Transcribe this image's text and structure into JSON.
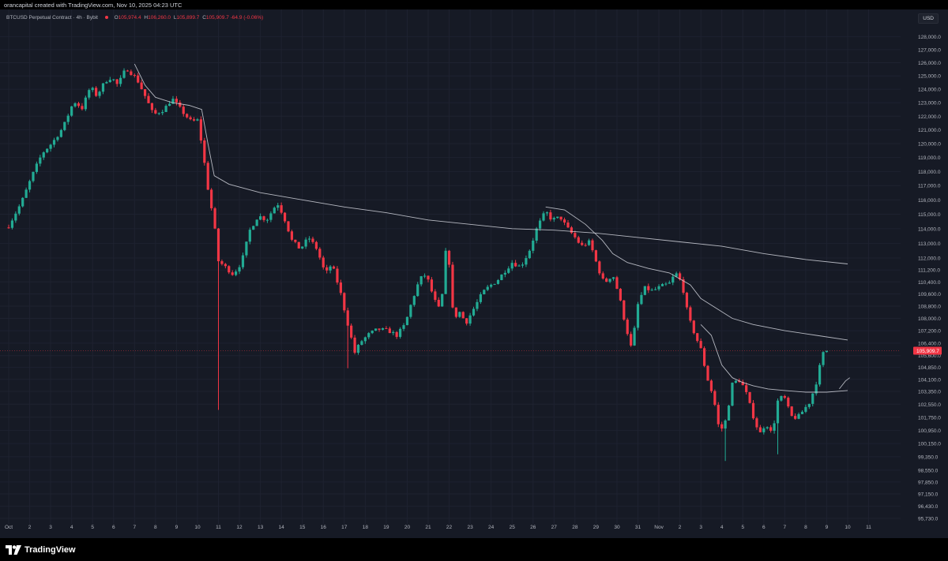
{
  "header": {
    "credit": "orancapital created with TradingView.com, Nov 10, 2025 04:23 UTC"
  },
  "legend": {
    "symbol": "BTCUSD Perpetual Contract · 4h · Bybit",
    "open_label": "O",
    "open": "105,974.4",
    "high_label": "H",
    "high": "106,260.0",
    "low_label": "L",
    "low": "105,899.7",
    "close_label": "C",
    "close": "105,909.7",
    "change": "-64.9 (-0.06%)"
  },
  "currency_label": "USD",
  "price_tag": "105,909.7",
  "footer": {
    "brand": "TradingView",
    "logo_icon": "tradingview-logo-icon"
  },
  "colors": {
    "up": "#22ab94",
    "down": "#f23645",
    "ma": "#d1d4dc",
    "background": "#161a25"
  },
  "chart_data": {
    "type": "candlestick",
    "symbol": "BTCUSD",
    "timeframe": "4h",
    "y_axis": {
      "scale": "log",
      "tick_labels": [
        "128,000.0",
        "127,000.0",
        "126,000.0",
        "125,000.0",
        "124,000.0",
        "123,000.0",
        "122,000.0",
        "121,000.0",
        "120,000.0",
        "119,000.0",
        "118,000.0",
        "117,000.0",
        "116,000.0",
        "115,000.0",
        "114,000.0",
        "113,000.0",
        "112,000.0",
        "111,200.0",
        "110,400.0",
        "109,600.0",
        "108,800.0",
        "108,000.0",
        "107,200.0",
        "106,400.0",
        "105,600.0",
        "104,850.0",
        "104,100.0",
        "103,350.0",
        "102,550.0",
        "101,750.0",
        "100,950.0",
        "100,150.0",
        "99,350.0",
        "98,550.0",
        "97,850.0",
        "97,150.0",
        "96,430.0",
        "95,730.0"
      ],
      "tick_values": [
        128000,
        127000,
        126000,
        125000,
        124000,
        123000,
        122000,
        121000,
        120000,
        119000,
        118000,
        117000,
        116000,
        115000,
        114000,
        113000,
        112000,
        111200,
        110400,
        109600,
        108800,
        108000,
        107200,
        106400,
        105600,
        104850,
        104100,
        103350,
        102550,
        101750,
        100950,
        100150,
        99350,
        98550,
        97850,
        97150,
        96430,
        95730
      ],
      "range": [
        95500,
        129000
      ]
    },
    "x_axis": {
      "tick_labels": [
        "Oct",
        "2",
        "3",
        "4",
        "5",
        "6",
        "7",
        "8",
        "9",
        "10",
        "11",
        "12",
        "13",
        "14",
        "15",
        "16",
        "17",
        "18",
        "19",
        "20",
        "21",
        "22",
        "23",
        "24",
        "25",
        "26",
        "27",
        "28",
        "29",
        "30",
        "31",
        "Nov",
        "2",
        "3",
        "4",
        "5",
        "6",
        "7",
        "8",
        "9",
        "10",
        "11"
      ],
      "range_days": [
        1,
        42
      ]
    },
    "last_price": 105909.7,
    "path": [
      [
        1.0,
        114200
      ],
      [
        1.6,
        115800
      ],
      [
        2.2,
        118000
      ],
      [
        2.6,
        119300
      ],
      [
        3.1,
        120100
      ],
      [
        3.6,
        121200
      ],
      [
        4.1,
        123100
      ],
      [
        4.5,
        122600
      ],
      [
        4.9,
        124200
      ],
      [
        5.2,
        123500
      ],
      [
        5.6,
        124600
      ],
      [
        5.9,
        124900
      ],
      [
        6.2,
        124300
      ],
      [
        6.6,
        125600
      ],
      [
        7.1,
        124800
      ],
      [
        7.5,
        123500
      ],
      [
        7.9,
        122100
      ],
      [
        8.4,
        122500
      ],
      [
        8.8,
        123300
      ],
      [
        9.3,
        122300
      ],
      [
        9.7,
        121600
      ],
      [
        10.0,
        121700
      ],
      [
        10.2,
        120000
      ],
      [
        10.5,
        116800
      ],
      [
        10.8,
        114300
      ],
      [
        11.0,
        111800
      ],
      [
        11.4,
        111300
      ],
      [
        11.7,
        110900
      ],
      [
        12.1,
        111700
      ],
      [
        12.5,
        113900
      ],
      [
        12.9,
        114900
      ],
      [
        13.3,
        114600
      ],
      [
        13.8,
        115800
      ],
      [
        14.1,
        114900
      ],
      [
        14.5,
        113200
      ],
      [
        14.9,
        112600
      ],
      [
        15.3,
        113400
      ],
      [
        15.7,
        112600
      ],
      [
        16.1,
        110900
      ],
      [
        16.4,
        111600
      ],
      [
        16.8,
        109800
      ],
      [
        17.1,
        108000
      ],
      [
        17.5,
        105800
      ],
      [
        17.8,
        106500
      ],
      [
        18.2,
        107000
      ],
      [
        18.6,
        107300
      ],
      [
        19.1,
        107200
      ],
      [
        19.5,
        106900
      ],
      [
        19.9,
        107600
      ],
      [
        20.2,
        109000
      ],
      [
        20.6,
        110600
      ],
      [
        20.9,
        110900
      ],
      [
        21.3,
        109200
      ],
      [
        21.6,
        108400
      ],
      [
        21.9,
        113500
      ],
      [
        22.2,
        108000
      ],
      [
        22.5,
        108400
      ],
      [
        22.8,
        107700
      ],
      [
        23.2,
        108700
      ],
      [
        23.6,
        109700
      ],
      [
        23.9,
        110100
      ],
      [
        24.3,
        110500
      ],
      [
        24.7,
        111200
      ],
      [
        25.0,
        111700
      ],
      [
        25.4,
        111400
      ],
      [
        25.8,
        112400
      ],
      [
        26.2,
        114100
      ],
      [
        26.6,
        115200
      ],
      [
        26.9,
        114600
      ],
      [
        27.3,
        114800
      ],
      [
        27.6,
        114100
      ],
      [
        28.0,
        113400
      ],
      [
        28.3,
        112800
      ],
      [
        28.7,
        113100
      ],
      [
        29.1,
        111300
      ],
      [
        29.4,
        110300
      ],
      [
        29.8,
        110900
      ],
      [
        30.1,
        109500
      ],
      [
        30.4,
        107600
      ],
      [
        30.7,
        106000
      ],
      [
        31.0,
        108900
      ],
      [
        31.3,
        110000
      ],
      [
        31.7,
        109800
      ],
      [
        32.1,
        110100
      ],
      [
        32.5,
        110300
      ],
      [
        32.8,
        111000
      ],
      [
        33.1,
        110300
      ],
      [
        33.4,
        108100
      ],
      [
        33.7,
        107000
      ],
      [
        34.0,
        106000
      ],
      [
        34.3,
        104200
      ],
      [
        34.6,
        103000
      ],
      [
        34.9,
        100800
      ],
      [
        35.2,
        101600
      ],
      [
        35.5,
        103800
      ],
      [
        35.8,
        104100
      ],
      [
        36.1,
        103500
      ],
      [
        36.5,
        101800
      ],
      [
        36.8,
        100700
      ],
      [
        37.1,
        101400
      ],
      [
        37.4,
        100700
      ],
      [
        37.7,
        103000
      ],
      [
        38.0,
        102900
      ],
      [
        38.3,
        101800
      ],
      [
        38.6,
        101700
      ],
      [
        38.9,
        102200
      ],
      [
        39.2,
        102700
      ],
      [
        39.5,
        103900
      ],
      [
        39.8,
        105700
      ],
      [
        40.0,
        105909.7
      ]
    ],
    "moving_averages": [
      {
        "points": [
          [
            7.0,
            125900
          ],
          [
            7.5,
            124300
          ],
          [
            8.0,
            123400
          ],
          [
            8.8,
            123000
          ],
          [
            9.6,
            122800
          ],
          [
            10.2,
            122500
          ],
          [
            10.5,
            120000
          ],
          [
            10.8,
            117700
          ],
          [
            11.5,
            117100
          ],
          [
            13,
            116500
          ],
          [
            15,
            116000
          ],
          [
            17,
            115500
          ],
          [
            19,
            115100
          ],
          [
            21,
            114600
          ],
          [
            23,
            114300
          ],
          [
            25,
            114000
          ],
          [
            27,
            113900
          ],
          [
            29,
            113700
          ],
          [
            31,
            113400
          ],
          [
            33,
            113100
          ],
          [
            35,
            112800
          ],
          [
            37,
            112300
          ],
          [
            39,
            111900
          ],
          [
            41,
            111600
          ]
        ]
      },
      {
        "points": [
          [
            26.6,
            115500
          ],
          [
            27.5,
            115300
          ],
          [
            28.5,
            114300
          ],
          [
            29.3,
            113200
          ],
          [
            29.8,
            112300
          ],
          [
            30.5,
            111700
          ],
          [
            31.5,
            111300
          ],
          [
            32.5,
            111000
          ],
          [
            33.5,
            110200
          ],
          [
            34.0,
            109300
          ],
          [
            34.8,
            108600
          ],
          [
            35.5,
            108000
          ],
          [
            36.5,
            107600
          ],
          [
            38,
            107200
          ],
          [
            39.5,
            106900
          ],
          [
            41,
            106600
          ]
        ]
      },
      {
        "points": [
          [
            34.0,
            107600
          ],
          [
            34.5,
            106900
          ],
          [
            35.0,
            105000
          ],
          [
            35.5,
            104200
          ],
          [
            36.0,
            103900
          ],
          [
            36.5,
            103700
          ],
          [
            37.2,
            103500
          ],
          [
            38,
            103400
          ],
          [
            39,
            103300
          ],
          [
            40,
            103300
          ],
          [
            41,
            103400
          ]
        ]
      },
      {
        "points": [
          [
            40.6,
            103500
          ],
          [
            40.9,
            104000
          ],
          [
            41.1,
            104200
          ]
        ]
      }
    ]
  }
}
